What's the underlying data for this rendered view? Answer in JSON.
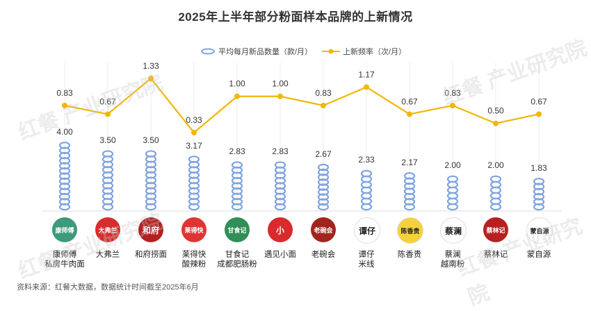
{
  "title": "2025年上半年部分粉面样本品牌的上新情况",
  "legend": {
    "bar_label": "平均每月新品数量（款/月）",
    "line_label": "上新频率（次/月）"
  },
  "source": "资料来源：红餐大数据，数据统计时间截至2025年6月",
  "watermark": "红餐 产业研究院",
  "colors": {
    "bar": "#7fa4e0",
    "line": "#f2b705",
    "text": "#333333"
  },
  "brands": [
    {
      "line1": "康师傅",
      "line2": "私房牛肉面",
      "logo_text": "康师傅",
      "logo_color": "#3d9a7b"
    },
    {
      "line1": "大弗兰",
      "line2": "",
      "logo_text": "大弗兰",
      "logo_color": "#d62d2d"
    },
    {
      "line1": "和府捞面",
      "line2": "",
      "logo_text": "和府",
      "logo_color": "#b32020"
    },
    {
      "line1": "莱得快",
      "line2": "酸辣粉",
      "logo_text": "莱得快",
      "logo_color": "#e03434"
    },
    {
      "line1": "甘食记",
      "line2": "成都肥肠粉",
      "logo_text": "甘食记",
      "logo_color": "#2f8f57"
    },
    {
      "line1": "遇见小面",
      "line2": "",
      "logo_text": "小",
      "logo_color": "#d92b2b"
    },
    {
      "line1": "老碗会",
      "line2": "",
      "logo_text": "老碗会",
      "logo_color": "#a3241f"
    },
    {
      "line1": "谭仔",
      "line2": "米线",
      "logo_text": "谭仔",
      "logo_color": "#ffffff"
    },
    {
      "line1": "陈香贵",
      "line2": "",
      "logo_text": "陈香贵",
      "logo_color": "#f5d23a"
    },
    {
      "line1": "蔡澜",
      "line2": "越南粉",
      "logo_text": "蔡澜",
      "logo_color": "#ffffff"
    },
    {
      "line1": "蔡林记",
      "line2": "",
      "logo_text": "蔡林记",
      "logo_color": "#b8201f"
    },
    {
      "line1": "蒙自源",
      "line2": "",
      "logo_text": "蒙自源",
      "logo_color": "#ffffff"
    }
  ],
  "chart_data": {
    "type": "bar",
    "categories": [
      "康师傅私房牛肉面",
      "大弗兰",
      "和府捞面",
      "莱得快酸辣粉",
      "甘食记成都肥肠粉",
      "遇见小面",
      "老碗会",
      "谭仔米线",
      "陈香贵",
      "蔡澜越南粉",
      "蔡林记",
      "蒙自源"
    ],
    "series": [
      {
        "name": "平均每月新品数量（款/月）",
        "type": "bar",
        "values": [
          4.0,
          3.5,
          3.5,
          3.17,
          2.83,
          2.83,
          2.67,
          2.33,
          2.17,
          2.0,
          2.0,
          1.83
        ]
      },
      {
        "name": "上新频率（次/月）",
        "type": "line",
        "values": [
          0.83,
          0.67,
          1.33,
          0.33,
          1.0,
          1.0,
          0.83,
          1.17,
          0.67,
          0.83,
          0.5,
          0.67
        ]
      }
    ],
    "grid": true
  }
}
